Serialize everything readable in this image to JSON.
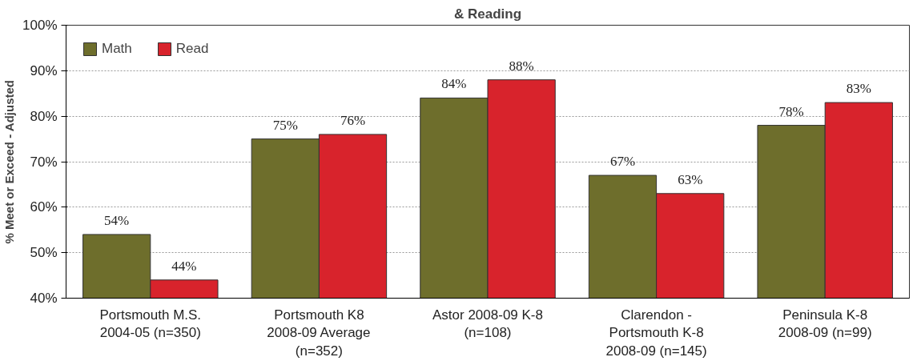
{
  "chart_data": {
    "type": "bar",
    "title": "& Reading",
    "ylabel": "% Meet or Exceed - Adjusted",
    "categories": [
      "Portsmouth M.S.\n2004-05 (n=350)",
      "Portsmouth K8\n2008-09 Average\n(n=352)",
      "Astor 2008-09 K-8\n(n=108)",
      "Clarendon -\nPortsmouth K-8\n2008-09 (n=145)",
      "Peninsula K-8\n2008-09 (n=99)"
    ],
    "series": [
      {
        "name": "Math",
        "color": "#6e6e2c",
        "values": [
          54,
          75,
          84,
          67,
          78
        ],
        "value_labels": [
          "54%",
          "75%",
          "84%",
          "67%",
          "78%"
        ]
      },
      {
        "name": "Read",
        "color": "#d8232c",
        "values": [
          44,
          76,
          88,
          63,
          83
        ],
        "value_labels": [
          "44%",
          "76%",
          "88%",
          "63%",
          "83%"
        ]
      }
    ],
    "ylim": [
      40,
      100
    ],
    "yticks": [
      {
        "value": 40,
        "label": "40%"
      },
      {
        "value": 50,
        "label": "50%"
      },
      {
        "value": 60,
        "label": "60%"
      },
      {
        "value": 70,
        "label": "70%"
      },
      {
        "value": 80,
        "label": "80%"
      },
      {
        "value": 90,
        "label": "90%"
      },
      {
        "value": 100,
        "label": "100%"
      }
    ],
    "grid": "y",
    "legend": "top left"
  }
}
